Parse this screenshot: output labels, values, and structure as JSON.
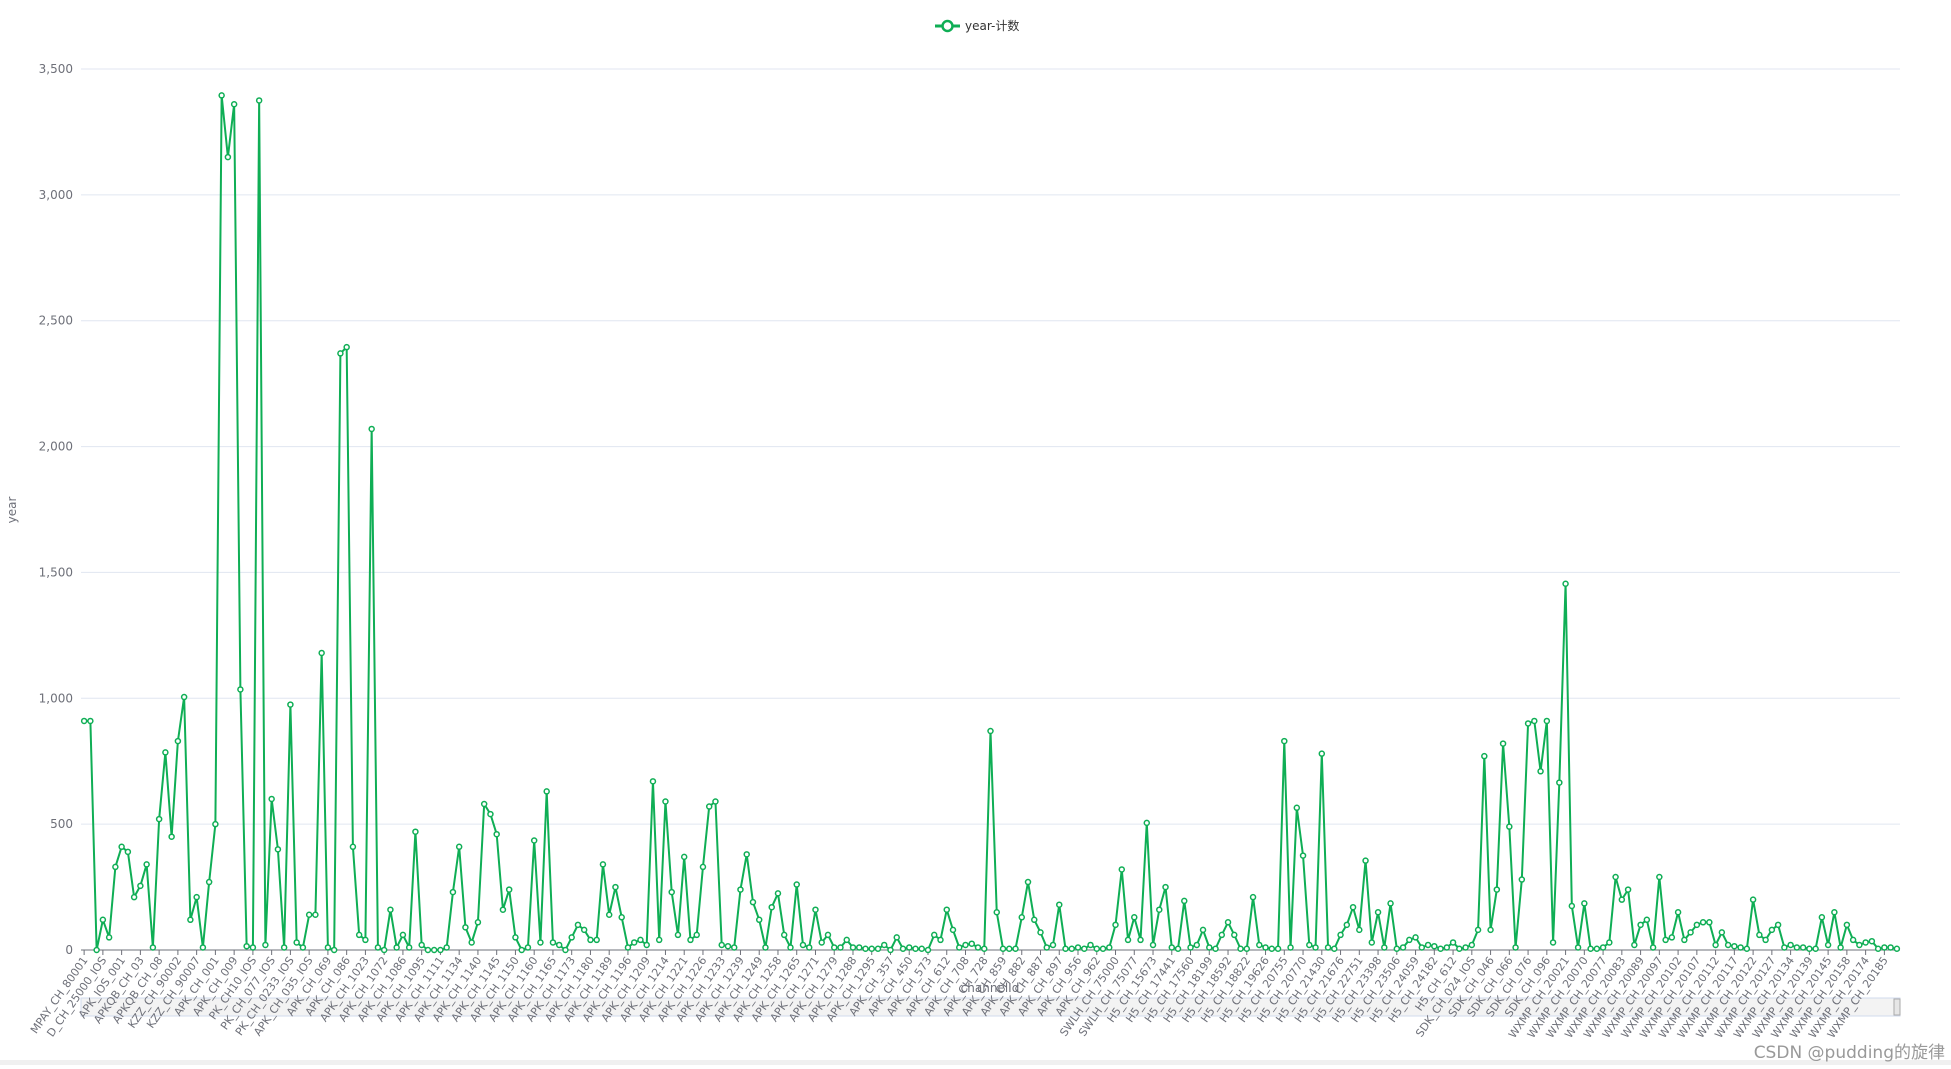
{
  "chart_data": {
    "type": "line",
    "legend": "top",
    "ylabel": "year",
    "xlabel": "channelId",
    "watermark": "CSDN @pudding的旋律",
    "grid": true,
    "ylim": [
      0,
      3500
    ],
    "yticks": [
      0,
      500,
      {
        "value": 1000,
        "label": "1,000"
      },
      {
        "value": 1500,
        "label": "1,500"
      },
      {
        "value": 2000,
        "label": "2,000"
      },
      {
        "value": 2500,
        "label": "2,500"
      },
      {
        "value": 3000,
        "label": "3,000"
      },
      {
        "value": 3500,
        "label": "3,500"
      }
    ],
    "categories": [
      "MPAY_CH_80001",
      null,
      null,
      "D_CH_25000_IOS",
      null,
      null,
      "APK_IOS_001",
      null,
      null,
      "APKQB_CH_03",
      null,
      null,
      "APKQB_CH_08",
      null,
      null,
      "KZZ_CH_90002",
      null,
      null,
      "KZZ_CH_90007",
      null,
      null,
      "APK_CH_001",
      null,
      null,
      "APK_CH_009",
      null,
      null,
      "PK_CH10_IOS",
      null,
      null,
      "PK_CH_077_IOS",
      null,
      null,
      "PK_CH_0233_IOS",
      null,
      null,
      "APK_CH_035_IOS",
      null,
      null,
      "APK_CH_069",
      null,
      null,
      "APK_CH_086",
      null,
      null,
      "APK_CH_1023",
      null,
      null,
      "APK_CH_1072",
      null,
      null,
      "APK_CH_1086",
      null,
      null,
      "APK_CH_1095",
      null,
      null,
      "APK_CH_1111",
      null,
      null,
      "APK_CH_1134",
      null,
      null,
      "APK_CH_1140",
      null,
      null,
      "APK_CH_1145",
      null,
      null,
      "APK_CH_1150",
      null,
      null,
      "APK_CH_1160",
      null,
      null,
      "APK_CH_1165",
      null,
      null,
      "APK_CH_1173",
      null,
      null,
      "APK_CH_1180",
      null,
      null,
      "APK_CH_1189",
      null,
      null,
      "APK_CH_1196",
      null,
      null,
      "APK_CH_1209",
      null,
      null,
      "APK_CH_1214",
      null,
      null,
      "APK_CH_1221",
      null,
      null,
      "APK_CH_1226",
      null,
      null,
      "APK_CH_1233",
      null,
      null,
      "APK_CH_1239",
      null,
      null,
      "APK_CH_1249",
      null,
      null,
      "APK_CH_1258",
      null,
      null,
      "APK_CH_1265",
      null,
      null,
      "APK_CH_1271",
      null,
      null,
      "APK_CH_1279",
      null,
      null,
      "APK_CH_1288",
      null,
      null,
      "APK_CH_1295",
      null,
      null,
      "APK_CH_357",
      null,
      null,
      "APK_CH_450",
      null,
      null,
      "APK_CH_573",
      null,
      null,
      "APK_CH_612",
      null,
      null,
      "APK_CH_708",
      null,
      null,
      "APK_CH_728",
      null,
      null,
      "APK_CH_859",
      null,
      null,
      "APK_CH_882",
      null,
      null,
      "APK_CH_887",
      null,
      null,
      "APK_CH_897",
      null,
      null,
      "APK_CH_956",
      null,
      null,
      "APK_CH_962",
      null,
      null,
      "SWLH_CH_75000",
      null,
      null,
      "SWLH_CH_75077",
      null,
      null,
      "H5_CH_15673",
      null,
      null,
      "H5_CH_17441",
      null,
      null,
      "H5_CH_17560",
      null,
      null,
      "H5_CH_18199",
      null,
      null,
      "H5_CH_18592",
      null,
      null,
      "H5_CH_18822",
      null,
      null,
      "H5_CH_19626",
      null,
      null,
      "H5_CH_20755",
      null,
      null,
      "H5_CH_20770",
      null,
      null,
      "H5_CH_21430",
      null,
      null,
      "H5_CH_21676",
      null,
      null,
      "H5_CH_22751",
      null,
      null,
      "H5_CH_23398",
      null,
      null,
      "H5_CH_23506",
      null,
      null,
      "H5_CH_24059",
      null,
      null,
      "H5_CH_24182",
      null,
      null,
      "H5_CH_612",
      null,
      null,
      "SDK_CH_024_IOS",
      null,
      null,
      "SDK_CH_046",
      null,
      null,
      "SDK_CH_066",
      null,
      null,
      "SDK_CH_076",
      null,
      null,
      "SDK_CH_096",
      null,
      null,
      "WXMP_CH_20021",
      null,
      null,
      "WXMP_CH_20070",
      null,
      null,
      "WXMP_CH_20077",
      null,
      null,
      "WXMP_CH_20083",
      null,
      null,
      "WXMP_CH_20089",
      null,
      null,
      "WXMP_CH_20097",
      null,
      null,
      "WXMP_CH_20102",
      null,
      null,
      "WXMP_CH_20107",
      null,
      null,
      "WXMP_CH_20112",
      null,
      null,
      "WXMP_CH_20117",
      null,
      null,
      "WXMP_CH_20122",
      null,
      null,
      "WXMP_CH_20127",
      null,
      null,
      "WXMP_CH_20134",
      null,
      null,
      "WXMP_CH_20139",
      null,
      null,
      "WXMP_CH_20145",
      null,
      null,
      "WXMP_CH_20158",
      null,
      null,
      "WXMP_CH_20174",
      null,
      null,
      "WXMP_CH_20185",
      null,
      null
    ],
    "series": [
      {
        "name": "year-计数",
        "color": "#0fae55",
        "values": [
          910,
          910,
          0,
          120,
          50,
          330,
          410,
          390,
          210,
          255,
          340,
          10,
          520,
          785,
          450,
          830,
          1005,
          120,
          210,
          10,
          270,
          500,
          3395,
          3150,
          3360,
          1035,
          15,
          10,
          3375,
          20,
          600,
          400,
          10,
          975,
          30,
          10,
          140,
          140,
          1180,
          10,
          0,
          2370,
          2395,
          410,
          60,
          40,
          2070,
          10,
          0,
          160,
          10,
          60,
          10,
          470,
          20,
          0,
          0,
          0,
          10,
          230,
          410,
          90,
          30,
          110,
          580,
          540,
          460,
          160,
          240,
          50,
          0,
          10,
          435,
          30,
          630,
          30,
          20,
          0,
          50,
          100,
          80,
          40,
          40,
          340,
          140,
          250,
          130,
          10,
          30,
          40,
          20,
          670,
          40,
          590,
          230,
          60,
          370,
          40,
          60,
          330,
          570,
          590,
          20,
          15,
          10,
          240,
          380,
          190,
          120,
          10,
          170,
          225,
          60,
          10,
          260,
          20,
          10,
          160,
          30,
          60,
          10,
          10,
          40,
          10,
          10,
          5,
          5,
          5,
          20,
          0,
          50,
          5,
          10,
          5,
          5,
          0,
          60,
          40,
          160,
          80,
          10,
          20,
          25,
          10,
          5,
          870,
          150,
          5,
          5,
          5,
          130,
          270,
          120,
          70,
          10,
          20,
          180,
          5,
          5,
          10,
          5,
          20,
          5,
          5,
          10,
          100,
          320,
          40,
          130,
          40,
          505,
          20,
          160,
          250,
          10,
          5,
          195,
          10,
          20,
          80,
          10,
          5,
          60,
          110,
          60,
          5,
          5,
          210,
          20,
          10,
          5,
          5,
          830,
          10,
          565,
          375,
          20,
          10,
          780,
          10,
          5,
          60,
          100,
          170,
          80,
          355,
          30,
          150,
          10,
          185,
          5,
          10,
          40,
          50,
          10,
          20,
          15,
          5,
          10,
          30,
          5,
          10,
          20,
          80,
          770,
          80,
          240,
          820,
          490,
          10,
          280,
          900,
          910,
          710,
          910,
          30,
          665,
          1455,
          175,
          10,
          185,
          5,
          5,
          10,
          30,
          290,
          200,
          240,
          20,
          100,
          120,
          10,
          290,
          40,
          50,
          150,
          40,
          70,
          100,
          110,
          110,
          20,
          70,
          20,
          15,
          10,
          5,
          200,
          60,
          40,
          80,
          100,
          10,
          20,
          10,
          10,
          5,
          5,
          130,
          20,
          150,
          10,
          100,
          40,
          20,
          30,
          35,
          5,
          10,
          10,
          5
        ]
      }
    ]
  }
}
